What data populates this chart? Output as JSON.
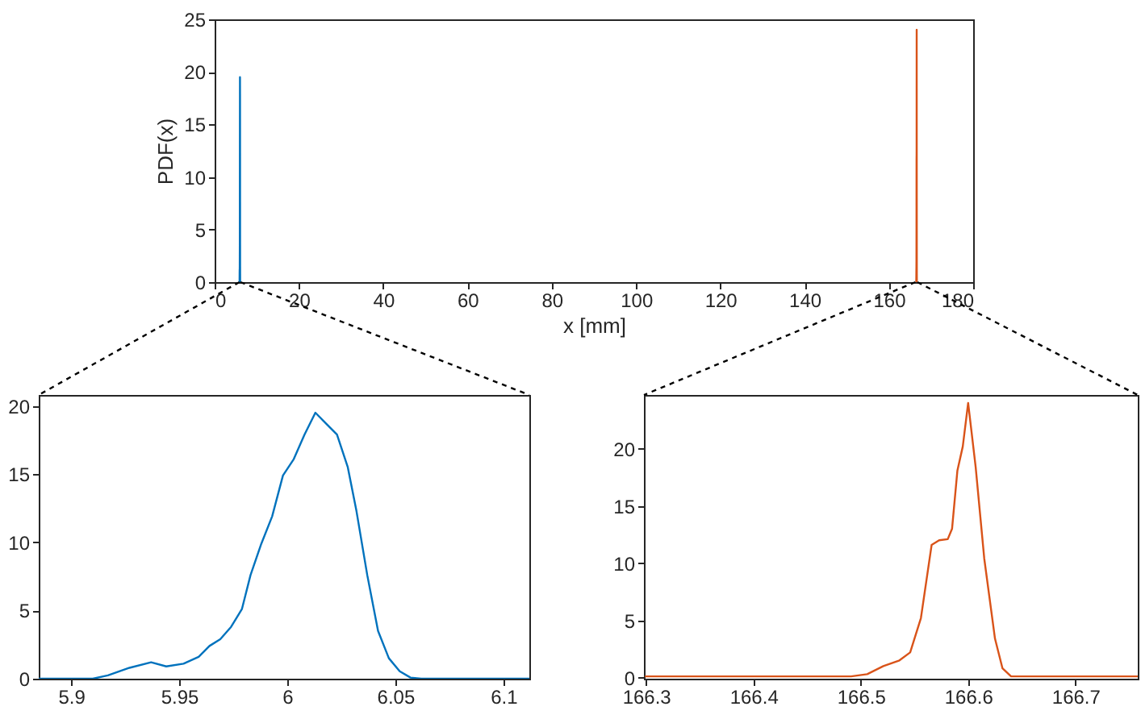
{
  "chart_data": [
    {
      "type": "line",
      "xlabel": "x [mm]",
      "ylabel": "PDF(x)",
      "xlim": [
        0,
        180
      ],
      "ylim": [
        0,
        25
      ],
      "xticks": [
        0,
        20,
        40,
        60,
        80,
        100,
        120,
        140,
        160,
        180
      ],
      "yticks": [
        0,
        5,
        10,
        15,
        20,
        25
      ],
      "series": [
        {
          "color": "#0072bd",
          "x": [
            5.885,
            5.91,
            5.917,
            5.927,
            5.937,
            5.944,
            5.952,
            5.959,
            5.964,
            5.969,
            5.974,
            5.979,
            5.983,
            5.988,
            5.993,
            5.998,
            6.003,
            6.008,
            6.013,
            6.018,
            6.023,
            6.028,
            6.032,
            6.037,
            6.042,
            6.047,
            6.052,
            6.057,
            6.062,
            6.112
          ],
          "values": [
            0,
            0,
            0.24,
            0.8,
            1.2,
            0.9,
            1.1,
            1.6,
            2.4,
            2.9,
            3.8,
            5.1,
            7.6,
            9.9,
            11.9,
            14.9,
            16.1,
            17.9,
            19.5,
            18.7,
            17.9,
            15.5,
            12.3,
            7.6,
            3.5,
            1.5,
            0.55,
            0.08,
            0,
            0
          ]
        },
        {
          "color": "#d95319",
          "x": [
            166.299,
            166.491,
            166.506,
            166.521,
            166.536,
            166.546,
            166.556,
            166.566,
            166.573,
            166.581,
            166.585,
            166.59,
            166.595,
            166.6,
            166.607,
            166.615,
            166.625,
            166.632,
            166.64,
            166.758
          ],
          "values": [
            0.1,
            0.1,
            0.3,
            1.0,
            1.5,
            2.2,
            5.2,
            11.6,
            12.0,
            12.1,
            13.0,
            18.1,
            20.2,
            24.0,
            18.4,
            10.4,
            3.4,
            0.8,
            0.1,
            0.1
          ]
        }
      ]
    },
    {
      "type": "line",
      "xlim": [
        5.885,
        6.112
      ],
      "ylim": [
        0,
        20.8
      ],
      "xticks": [
        5.9,
        5.95,
        6,
        6.05,
        6.1
      ],
      "yticks": [
        0,
        5,
        10,
        15,
        20
      ],
      "series": [
        {
          "color": "#0072bd",
          "x": [
            5.885,
            5.91,
            5.917,
            5.927,
            5.937,
            5.944,
            5.952,
            5.959,
            5.964,
            5.969,
            5.974,
            5.979,
            5.983,
            5.988,
            5.993,
            5.998,
            6.003,
            6.008,
            6.013,
            6.018,
            6.023,
            6.028,
            6.032,
            6.037,
            6.042,
            6.047,
            6.052,
            6.057,
            6.062,
            6.112
          ],
          "values": [
            0,
            0,
            0.24,
            0.8,
            1.2,
            0.9,
            1.1,
            1.6,
            2.4,
            2.9,
            3.8,
            5.1,
            7.6,
            9.9,
            11.9,
            14.9,
            16.1,
            17.9,
            19.5,
            18.7,
            17.9,
            15.5,
            12.3,
            7.6,
            3.5,
            1.5,
            0.55,
            0.08,
            0,
            0
          ]
        }
      ]
    },
    {
      "type": "line",
      "xlim": [
        166.298,
        166.758
      ],
      "ylim": [
        -0.1,
        24.7
      ],
      "xticks": [
        166.3,
        166.4,
        166.5,
        166.6,
        166.7
      ],
      "yticks": [
        0,
        5,
        10,
        15,
        20
      ],
      "series": [
        {
          "color": "#d95319",
          "x": [
            166.299,
            166.491,
            166.506,
            166.521,
            166.536,
            166.546,
            166.556,
            166.566,
            166.573,
            166.581,
            166.585,
            166.59,
            166.595,
            166.6,
            166.607,
            166.615,
            166.625,
            166.632,
            166.64,
            166.758
          ],
          "values": [
            0.1,
            0.1,
            0.3,
            1.0,
            1.5,
            2.2,
            5.2,
            11.6,
            12.0,
            12.1,
            13.0,
            18.1,
            20.2,
            24.0,
            18.4,
            10.4,
            3.4,
            0.8,
            0.1,
            0.1
          ]
        }
      ]
    }
  ]
}
